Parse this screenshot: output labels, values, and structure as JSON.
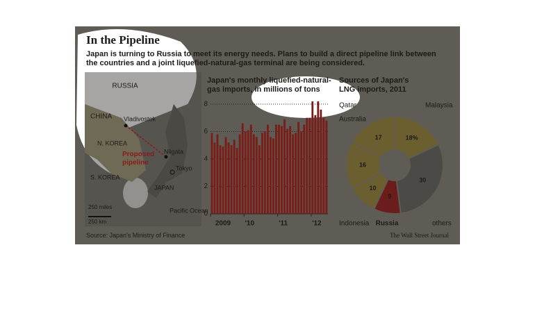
{
  "header": {
    "title": "In the Pipeline",
    "subtitle": "Japan is turning to Russia to meet its energy needs. Plans to build a direct pipeline link between the countries and a joint liquefied-natural-gas terminal are being considered."
  },
  "map": {
    "russia": "RUSSIA",
    "china": "CHINA",
    "north_korea": "N. KOREA",
    "south_korea": "S. KOREA",
    "japan": "JAPAN",
    "vladivostok": "Vladivostok",
    "niigata": "Niigata",
    "tokyo": "Tokyo",
    "pipeline": "Proposed pipeline",
    "scale_miles": "250 miles",
    "scale_km": "250 km",
    "ocean": "Pacific Ocean"
  },
  "chart_data": [
    {
      "type": "bar",
      "title": "Japan's monthly liquefied-natural-gas imports, in millions of tons",
      "categories": [
        "2009",
        null,
        null,
        null,
        null,
        null,
        null,
        null,
        null,
        null,
        null,
        null,
        "'10",
        null,
        null,
        null,
        null,
        null,
        null,
        null,
        null,
        null,
        null,
        null,
        "'11",
        null,
        null,
        null,
        null,
        null,
        null,
        null,
        null,
        null,
        null,
        null,
        "'12",
        null,
        null,
        null,
        null,
        null
      ],
      "values": [
        5.9,
        5.2,
        5.8,
        5.0,
        4.9,
        5.6,
        5.2,
        5.0,
        5.4,
        4.8,
        5.8,
        6.6,
        6.0,
        6.1,
        6.5,
        5.8,
        5.6,
        5.0,
        5.9,
        6.0,
        6.5,
        5.6,
        5.5,
        6.5,
        6.5,
        6.4,
        6.9,
        6.2,
        6.4,
        5.8,
        5.9,
        6.7,
        6.0,
        6.5,
        7.0,
        7.0,
        8.2,
        7.2,
        8.2,
        7.6,
        7.0,
        6.8
      ],
      "color": "#7a1c18",
      "ylim": [
        0,
        8.5
      ],
      "yticks": [
        0,
        2,
        4,
        6,
        8
      ],
      "grid": true
    },
    {
      "type": "pie",
      "title": "Sources of Japan's LNG imports, 2011",
      "categories": [
        "Malaysia",
        "others",
        "Russia",
        "Indonesia",
        "Australia",
        "Qatar"
      ],
      "values": [
        18,
        30,
        9,
        10,
        16,
        17
      ],
      "value_labels": [
        "18%",
        "30",
        "9",
        "10",
        "16",
        "17"
      ],
      "colors": [
        "#6b5f30",
        "#4b4a46",
        "#6a1d1a",
        "#6b5f30",
        "#6b5f30",
        "#6b5f30"
      ]
    }
  ],
  "footer": {
    "source": "Source: Japan's Ministry of Finance",
    "credit": "The Wall Street Journal"
  }
}
